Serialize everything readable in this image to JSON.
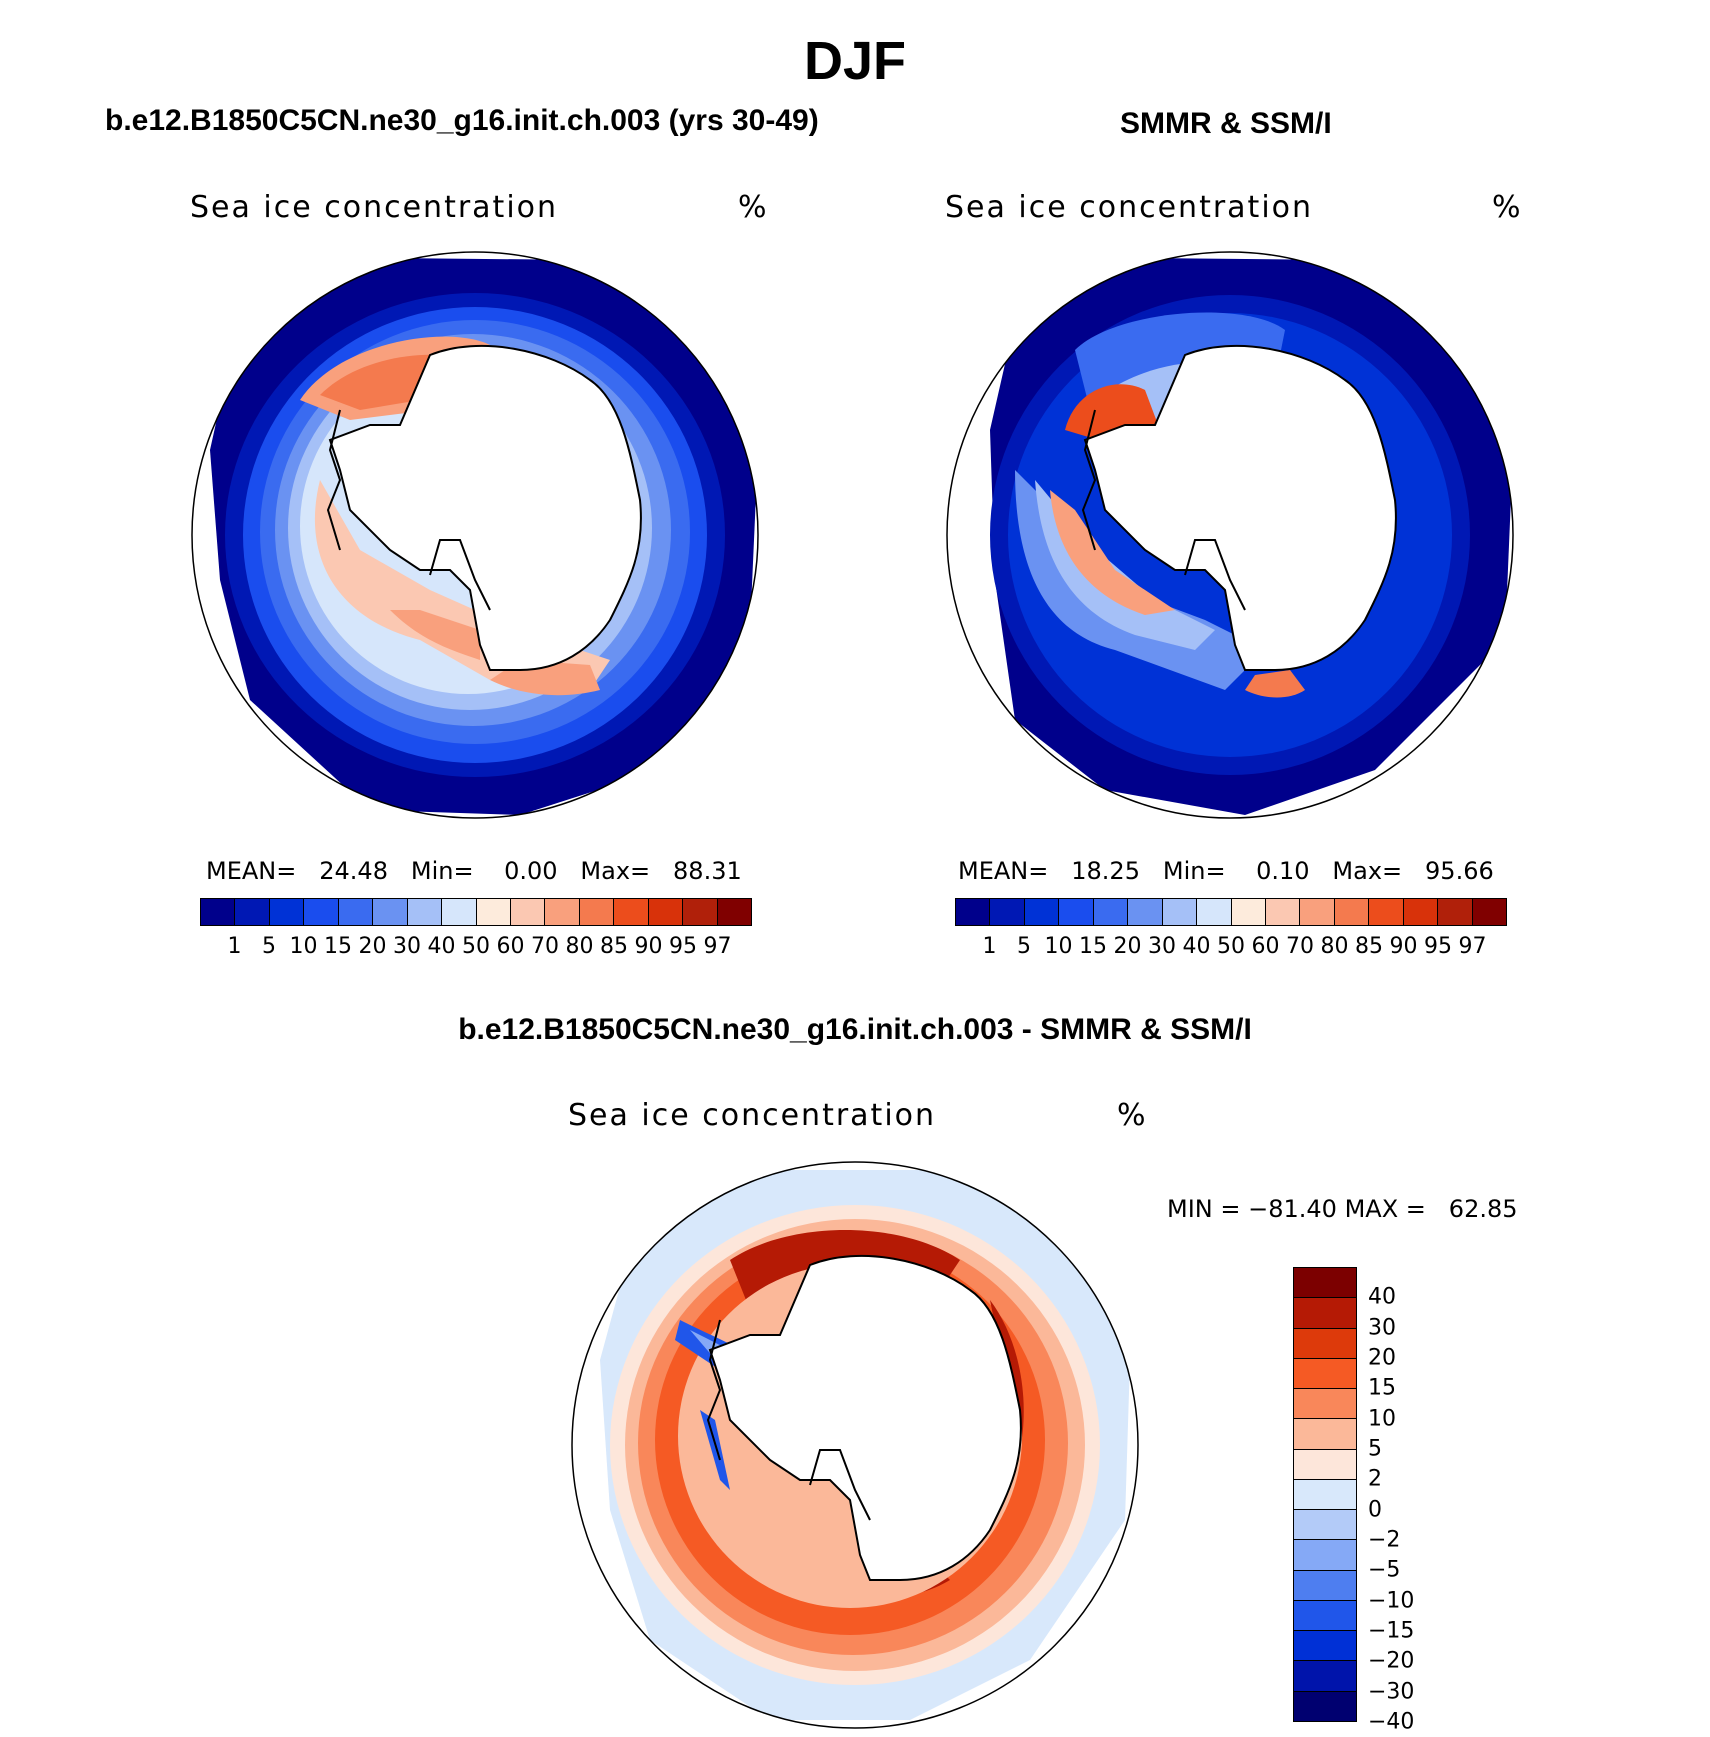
{
  "figure": {
    "title": "DJF"
  },
  "palettes": {
    "concentration": [
      "#00008b",
      "#0018b4",
      "#0032d6",
      "#1a4dee",
      "#3a6bf0",
      "#6a92f2",
      "#a5c0f7",
      "#d6e6fb",
      "#fdebdc",
      "#fbc8b2",
      "#f9a07d",
      "#f47a4e",
      "#ec4d1c",
      "#d8320a",
      "#b0200a",
      "#800000"
    ],
    "difference": [
      "#7c0000",
      "#b51a05",
      "#dd3a0b",
      "#f55a24",
      "#f9875a",
      "#fbb899",
      "#fde6da",
      "#d8e8fb",
      "#b3cbf8",
      "#85a9f6",
      "#4e7ef0",
      "#2056ea",
      "#0030d6",
      "#0014ab",
      "#000070"
    ]
  },
  "panels": {
    "model": {
      "title": "b.e12.B1850C5CN.ne30_g16.init.ch.003 (yrs 30-49)",
      "subtitle": "Sea ice concentration",
      "units": "%",
      "stats": {
        "mean_label": "MEAN=",
        "mean": "24.48",
        "min_label": "Min=",
        "min": "0.00",
        "max_label": "Max=",
        "max": "88.31"
      }
    },
    "obs": {
      "title": "SMMR & SSM/I",
      "subtitle": "Sea ice concentration",
      "units": "%",
      "stats": {
        "mean_label": "MEAN=",
        "mean": "18.25",
        "min_label": "Min=",
        "min": "0.10",
        "max_label": "Max=",
        "max": "95.66"
      }
    },
    "diff": {
      "title": "b.e12.B1850C5CN.ne30_g16.init.ch.003 - SMMR & SSM/I",
      "subtitle": "Sea ice concentration",
      "units": "%",
      "stats": {
        "min_label": "MIN =",
        "min": "−81.40",
        "max_label": "MAX =",
        "max": "62.85"
      }
    }
  },
  "legends": {
    "concentration_levels": [
      "1",
      "5",
      "10",
      "15",
      "20",
      "30",
      "40",
      "50",
      "60",
      "70",
      "80",
      "85",
      "90",
      "95",
      "97"
    ],
    "difference_levels": [
      "40",
      "30",
      "20",
      "15",
      "10",
      "5",
      "2",
      "0",
      "−2",
      "−5",
      "−10",
      "−15",
      "−20",
      "−30",
      "−40"
    ]
  }
}
